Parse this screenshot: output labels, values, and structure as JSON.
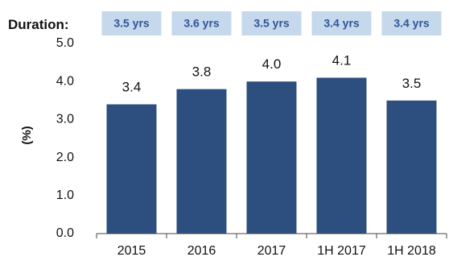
{
  "chart_data": {
    "type": "bar",
    "categories": [
      "2015",
      "2016",
      "2017",
      "1H 2017",
      "1H 2018"
    ],
    "values": [
      3.4,
      3.8,
      4.0,
      4.1,
      3.5
    ],
    "data_labels": [
      "3.4",
      "3.8",
      "4.0",
      "4.1",
      "3.5"
    ],
    "ylabel": "(%)",
    "ylim": [
      0,
      5
    ],
    "yticks": [
      "0.0",
      "1.0",
      "2.0",
      "3.0",
      "4.0",
      "5.0"
    ],
    "grid": false,
    "duration": {
      "label": "Duration:",
      "values": [
        "3.5 yrs",
        "3.6 yrs",
        "3.5 yrs",
        "3.4 yrs",
        "3.4 yrs"
      ]
    },
    "colors": {
      "bar": "#2d4f7f",
      "duration_box": "#c6d8ec",
      "duration_text": "#2f5597",
      "axis": "#444444",
      "text": "#111111"
    }
  }
}
